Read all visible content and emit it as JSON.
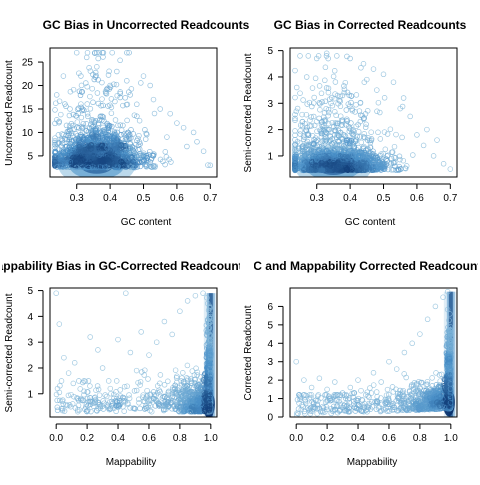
{
  "chart_data": [
    {
      "type": "scatter",
      "title": "GC Bias in Uncorrected Readcounts",
      "xlabel": "GC content",
      "ylabel": "Uncorrected Readcount",
      "xlim": [
        0.22,
        0.72
      ],
      "ylim": [
        0.5,
        28
      ],
      "xticks": [
        0.3,
        0.4,
        0.5,
        0.6,
        0.7
      ],
      "yticks": [
        5,
        10,
        15,
        20,
        25
      ],
      "xtick_labels": [
        "0.3",
        "0.4",
        "0.5",
        "0.6",
        "0.7"
      ],
      "ytick_labels": [
        "5",
        "10",
        "15",
        "20",
        "25"
      ],
      "density_core": {
        "x": 0.36,
        "y": 3
      },
      "sparse_points": [
        [
          0.3,
          27
        ],
        [
          0.33,
          26
        ],
        [
          0.38,
          27
        ],
        [
          0.36,
          24
        ],
        [
          0.42,
          23
        ],
        [
          0.45,
          21
        ],
        [
          0.5,
          22
        ],
        [
          0.52,
          20
        ],
        [
          0.4,
          20
        ],
        [
          0.46,
          18
        ],
        [
          0.55,
          15
        ],
        [
          0.58,
          14
        ],
        [
          0.6,
          12
        ],
        [
          0.62,
          11
        ],
        [
          0.65,
          10
        ],
        [
          0.66,
          8
        ],
        [
          0.68,
          6
        ],
        [
          0.7,
          3
        ],
        [
          0.26,
          22
        ],
        [
          0.24,
          18
        ],
        [
          0.28,
          15
        ],
        [
          0.48,
          16
        ],
        [
          0.53,
          17
        ],
        [
          0.57,
          9
        ],
        [
          0.63,
          7
        ]
      ]
    },
    {
      "type": "scatter",
      "title": "GC Bias in Corrected Readcounts",
      "xlabel": "GC content",
      "ylabel": "Semi-corrected Readcount",
      "xlim": [
        0.22,
        0.72
      ],
      "ylim": [
        0.2,
        5.1
      ],
      "xticks": [
        0.3,
        0.4,
        0.5,
        0.6,
        0.7
      ],
      "yticks": [
        1,
        2,
        3,
        4,
        5
      ],
      "xtick_labels": [
        "0.3",
        "0.4",
        "0.5",
        "0.6",
        "0.7"
      ],
      "ytick_labels": [
        "1",
        "2",
        "3",
        "4",
        "5"
      ],
      "density_core": {
        "x": 0.35,
        "y": 0.6
      },
      "sparse_points": [
        [
          0.25,
          4.8
        ],
        [
          0.3,
          4.7
        ],
        [
          0.33,
          4.9
        ],
        [
          0.36,
          4.8
        ],
        [
          0.4,
          4.7
        ],
        [
          0.44,
          4.5
        ],
        [
          0.47,
          4.3
        ],
        [
          0.5,
          4.1
        ],
        [
          0.53,
          3.8
        ],
        [
          0.56,
          3.2
        ],
        [
          0.58,
          2.5
        ],
        [
          0.6,
          1.8
        ],
        [
          0.62,
          1.4
        ],
        [
          0.65,
          1.0
        ],
        [
          0.68,
          0.7
        ],
        [
          0.7,
          0.5
        ],
        [
          0.27,
          4.0
        ],
        [
          0.24,
          3.6
        ],
        [
          0.45,
          3.9
        ],
        [
          0.48,
          3.5
        ],
        [
          0.55,
          2.8
        ],
        [
          0.63,
          2.0
        ],
        [
          0.66,
          1.6
        ]
      ]
    },
    {
      "type": "scatter",
      "title": "Mappability Bias in GC-Corrected Readcounts",
      "xlabel": "Mappability",
      "ylabel": "Semi-corrected Readcount",
      "xlim": [
        -0.04,
        1.04
      ],
      "ylim": [
        0.1,
        5.1
      ],
      "xticks": [
        0.0,
        0.2,
        0.4,
        0.6,
        0.8,
        1.0
      ],
      "yticks": [
        1,
        2,
        3,
        4,
        5
      ],
      "xtick_labels": [
        "0.0",
        "0.2",
        "0.4",
        "0.6",
        "0.8",
        "1.0"
      ],
      "ytick_labels": [
        "1",
        "2",
        "3",
        "4",
        "5"
      ],
      "density_core": {
        "x": 1.0,
        "y": 0.6
      },
      "sparse_points": [
        [
          0.0,
          4.9
        ],
        [
          0.02,
          3.7
        ],
        [
          0.05,
          2.4
        ],
        [
          0.08,
          1.8
        ],
        [
          0.12,
          2.2
        ],
        [
          0.18,
          1.5
        ],
        [
          0.22,
          3.2
        ],
        [
          0.27,
          2.7
        ],
        [
          0.3,
          2.0
        ],
        [
          0.35,
          1.2
        ],
        [
          0.4,
          3.1
        ],
        [
          0.45,
          4.9
        ],
        [
          0.48,
          2.6
        ],
        [
          0.52,
          1.9
        ],
        [
          0.55,
          3.4
        ],
        [
          0.6,
          2.5
        ],
        [
          0.65,
          3.0
        ],
        [
          0.7,
          3.8
        ],
        [
          0.75,
          3.3
        ],
        [
          0.8,
          4.2
        ],
        [
          0.85,
          4.6
        ],
        [
          0.9,
          4.8
        ],
        [
          0.95,
          4.9
        ],
        [
          0.98,
          4.5
        ]
      ]
    },
    {
      "type": "scatter",
      "title": "GC and Mappability Corrected Readcounts",
      "xlabel": "Mappability",
      "ylabel": "Corrected Readcount",
      "xlim": [
        -0.04,
        1.04
      ],
      "ylim": [
        0,
        7
      ],
      "xticks": [
        0.0,
        0.2,
        0.4,
        0.6,
        0.8,
        1.0
      ],
      "yticks": [
        0,
        1,
        2,
        3,
        4,
        5,
        6
      ],
      "xtick_labels": [
        "0.0",
        "0.2",
        "0.4",
        "0.6",
        "0.8",
        "1.0"
      ],
      "ytick_labels": [
        "0",
        "1",
        "2",
        "3",
        "4",
        "5",
        "6"
      ],
      "density_core": {
        "x": 1.0,
        "y": 0.8
      },
      "sparse_points": [
        [
          0.0,
          3.0
        ],
        [
          0.02,
          1.2
        ],
        [
          0.05,
          2.0
        ],
        [
          0.1,
          1.6
        ],
        [
          0.15,
          2.1
        ],
        [
          0.2,
          1.5
        ],
        [
          0.25,
          1.9
        ],
        [
          0.3,
          1.3
        ],
        [
          0.35,
          1.6
        ],
        [
          0.4,
          2.0
        ],
        [
          0.45,
          1.2
        ],
        [
          0.5,
          2.4
        ],
        [
          0.55,
          1.9
        ],
        [
          0.6,
          3.0
        ],
        [
          0.65,
          2.6
        ],
        [
          0.7,
          3.5
        ],
        [
          0.75,
          4.0
        ],
        [
          0.8,
          4.5
        ],
        [
          0.85,
          5.3
        ],
        [
          0.9,
          6.0
        ],
        [
          0.95,
          6.5
        ],
        [
          0.98,
          6.8
        ]
      ]
    }
  ],
  "colors": {
    "point_light": "#9ecae1",
    "point_mid": "#4a90c8",
    "point_dark": "#08306b"
  }
}
